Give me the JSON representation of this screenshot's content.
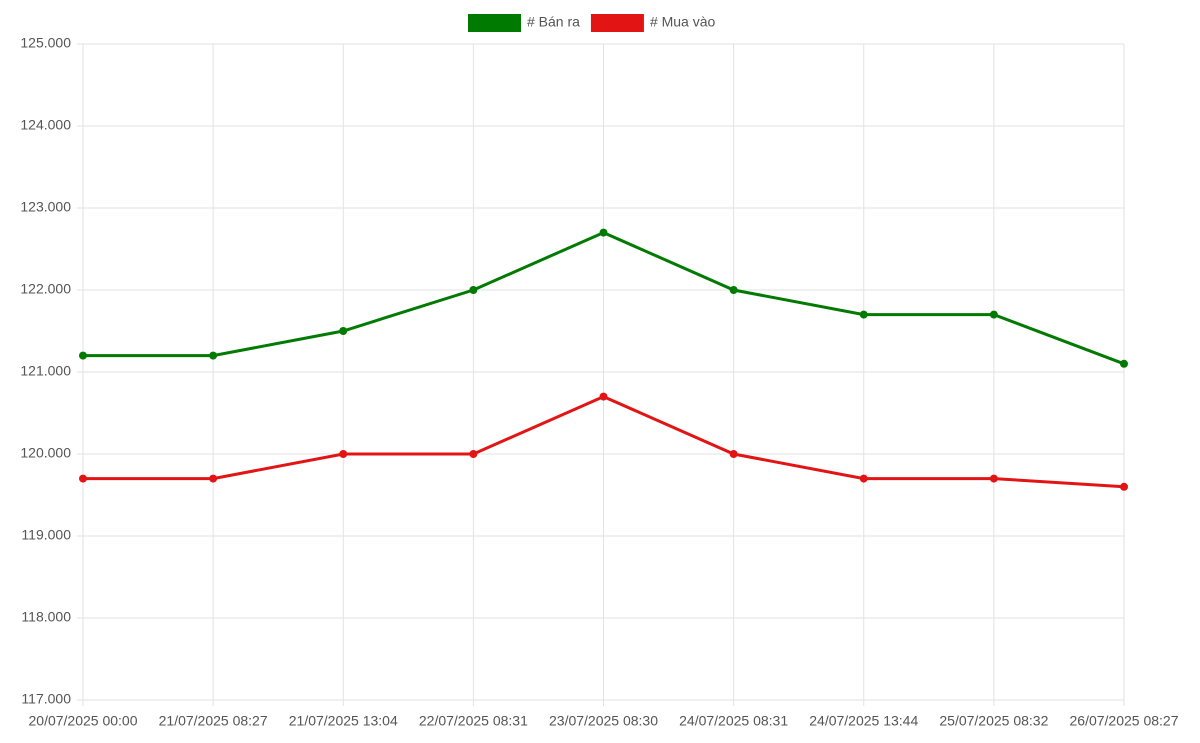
{
  "chart_data": {
    "type": "line",
    "categories": [
      "20/07/2025 00:00",
      "21/07/2025 08:27",
      "21/07/2025 13:04",
      "22/07/2025 08:31",
      "23/07/2025 08:30",
      "24/07/2025 08:31",
      "24/07/2025 13:44",
      "25/07/2025 08:32",
      "26/07/2025 08:27"
    ],
    "series": [
      {
        "name": "# Bán ra",
        "color": "#007a00",
        "values": [
          121200,
          121200,
          121500,
          122000,
          122700,
          122000,
          121700,
          121700,
          121100
        ]
      },
      {
        "name": "# Mua vào",
        "color": "#e31414",
        "values": [
          119700,
          119700,
          120000,
          120000,
          120700,
          120000,
          119700,
          119700,
          119600
        ]
      }
    ],
    "ylim": [
      117000,
      125000
    ],
    "yticks": [
      {
        "value": 117000,
        "label": "117.000"
      },
      {
        "value": 118000,
        "label": "118.000"
      },
      {
        "value": 119000,
        "label": "119.000"
      },
      {
        "value": 120000,
        "label": "120.000"
      },
      {
        "value": 121000,
        "label": "121.000"
      },
      {
        "value": 122000,
        "label": "122.000"
      },
      {
        "value": 123000,
        "label": "123.000"
      },
      {
        "value": 124000,
        "label": "124.000"
      },
      {
        "value": 125000,
        "label": "125.000"
      }
    ],
    "grid": true
  }
}
